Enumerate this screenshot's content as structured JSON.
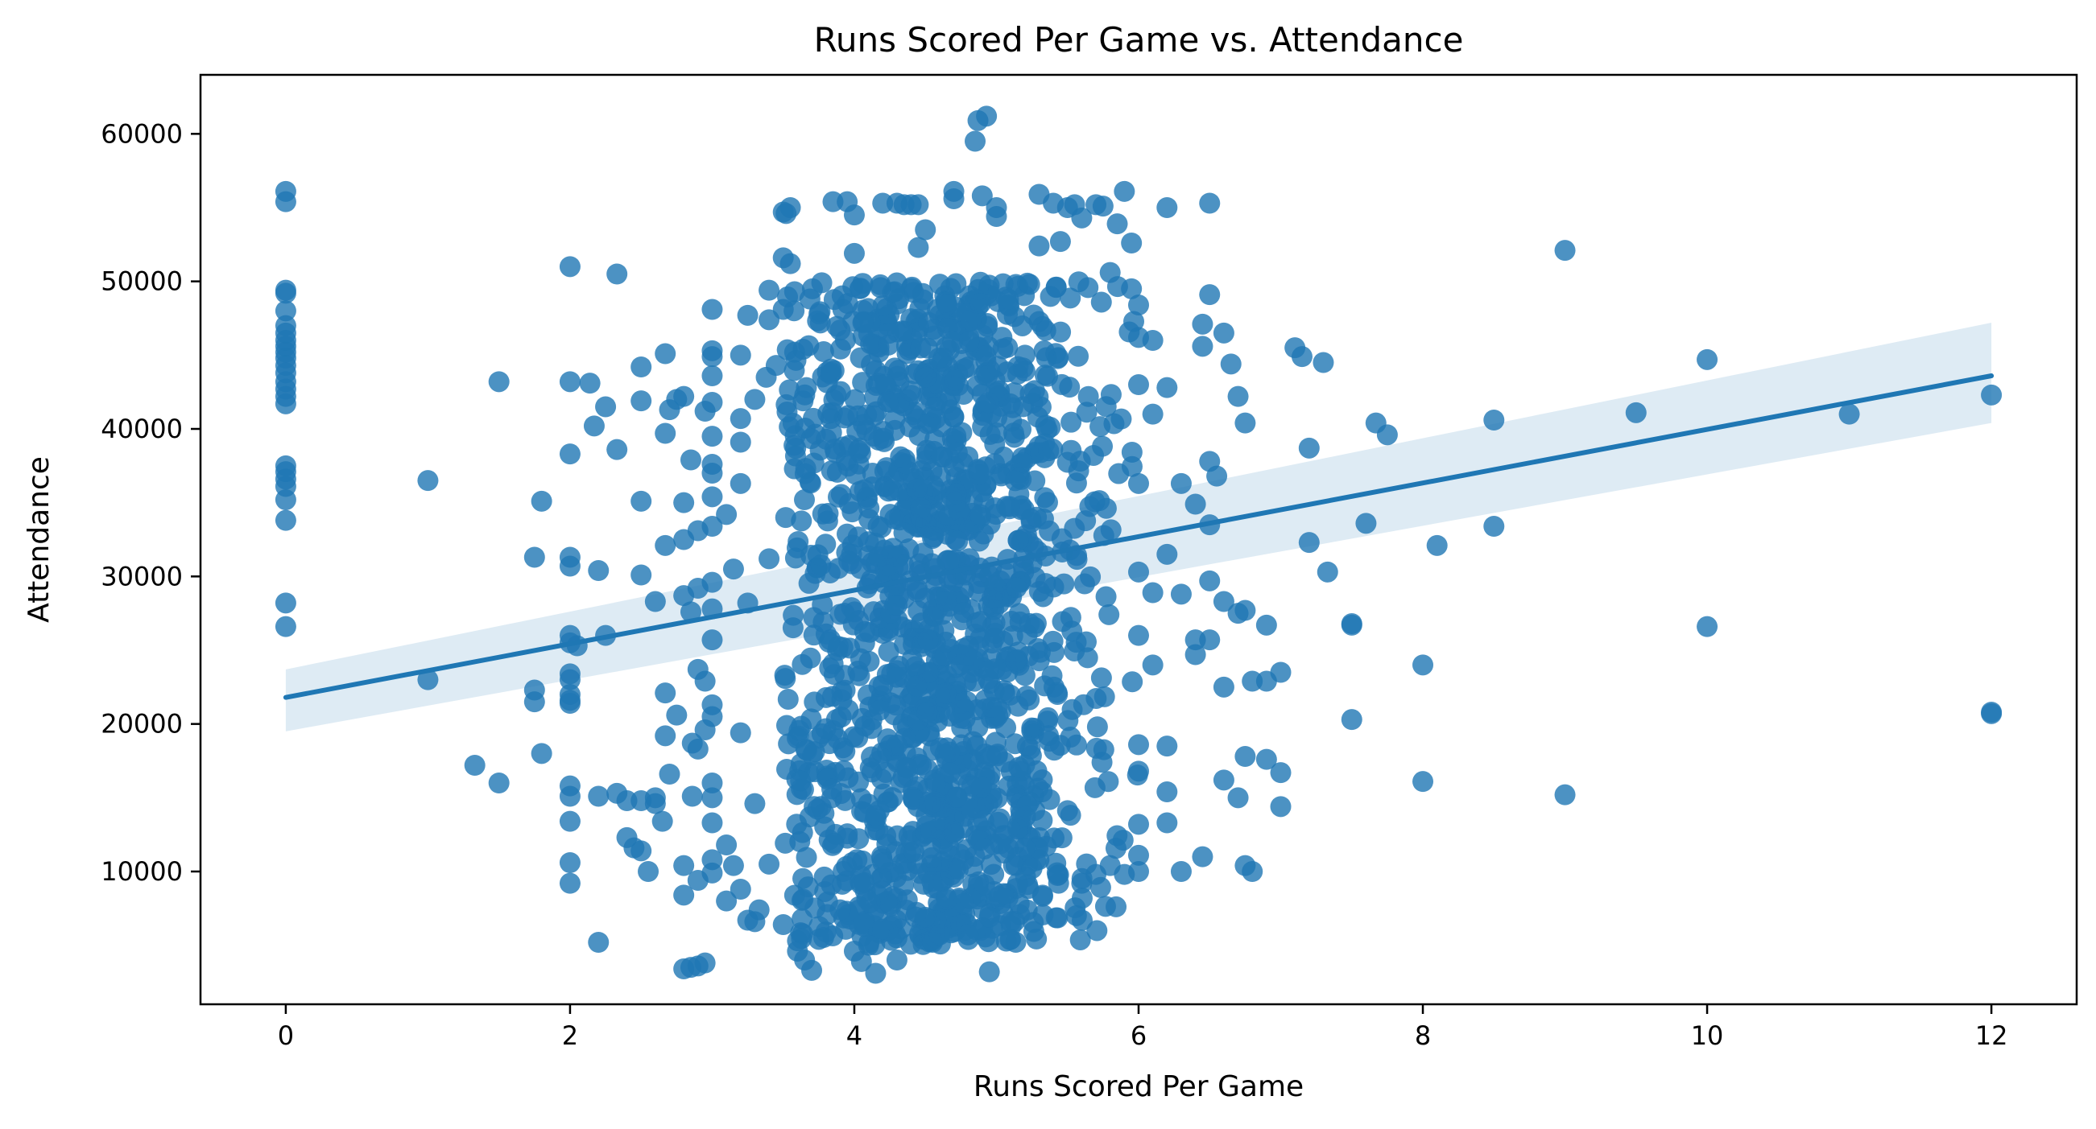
{
  "chart_data": {
    "type": "scatter",
    "title": "Runs Scored Per Game vs. Attendance",
    "xlabel": "Runs Scored Per Game",
    "ylabel": "Attendance",
    "xlim": [
      -0.6,
      12.6
    ],
    "ylim": [
      1000,
      64000
    ],
    "xticks": [
      0,
      2,
      4,
      6,
      8,
      10,
      12
    ],
    "yticks": [
      10000,
      20000,
      30000,
      40000,
      50000,
      60000
    ],
    "grid": false,
    "legend": "none",
    "point_color": "#1f77b4",
    "point_opacity": 0.8,
    "band_color": "#1f77b4",
    "band_opacity": 0.15,
    "regression": {
      "x": [
        0,
        12
      ],
      "y": [
        21800,
        43600
      ],
      "ci_lower": [
        19500,
        40400
      ],
      "ci_upper": [
        23700,
        47200
      ]
    },
    "dense_region": {
      "x_range": [
        3.5,
        6.0
      ],
      "y_range": [
        5000,
        50000
      ],
      "approx_count": 1500
    },
    "points": [
      [
        0,
        56100
      ],
      [
        0,
        55400
      ],
      [
        0,
        49400
      ],
      [
        0,
        49200
      ],
      [
        0,
        48000
      ],
      [
        0,
        47000
      ],
      [
        0,
        46500
      ],
      [
        0,
        46000
      ],
      [
        0,
        45600
      ],
      [
        0,
        45200
      ],
      [
        0,
        44800
      ],
      [
        0,
        44300
      ],
      [
        0,
        43800
      ],
      [
        0,
        43200
      ],
      [
        0,
        42700
      ],
      [
        0,
        42200
      ],
      [
        0,
        41700
      ],
      [
        0,
        37500
      ],
      [
        0,
        37100
      ],
      [
        0,
        36600
      ],
      [
        0,
        36100
      ],
      [
        0,
        35200
      ],
      [
        0,
        33800
      ],
      [
        0,
        28200
      ],
      [
        0,
        26600
      ],
      [
        1,
        36500
      ],
      [
        1,
        23000
      ],
      [
        1.33,
        17200
      ],
      [
        1.5,
        43200
      ],
      [
        1.5,
        16000
      ],
      [
        1.75,
        31300
      ],
      [
        1.75,
        22300
      ],
      [
        1.75,
        21500
      ],
      [
        1.8,
        35100
      ],
      [
        1.8,
        18000
      ],
      [
        2,
        51000
      ],
      [
        2,
        43200
      ],
      [
        2,
        38300
      ],
      [
        2,
        31300
      ],
      [
        2,
        30700
      ],
      [
        2,
        26000
      ],
      [
        2,
        25500
      ],
      [
        2,
        23400
      ],
      [
        2,
        23000
      ],
      [
        2,
        22000
      ],
      [
        2,
        21600
      ],
      [
        2,
        21400
      ],
      [
        2,
        15800
      ],
      [
        2,
        15100
      ],
      [
        2,
        13400
      ],
      [
        2,
        10600
      ],
      [
        2,
        9200
      ],
      [
        2.05,
        25300
      ],
      [
        2.14,
        43100
      ],
      [
        2.2,
        5200
      ],
      [
        2.2,
        30400
      ],
      [
        2.2,
        15100
      ],
      [
        2.25,
        41500
      ],
      [
        2.17,
        40200
      ],
      [
        2.33,
        50500
      ],
      [
        2.33,
        38600
      ],
      [
        2.25,
        26000
      ],
      [
        2.33,
        15300
      ],
      [
        2.4,
        12300
      ],
      [
        2.45,
        11600
      ],
      [
        2.4,
        14800
      ],
      [
        2.5,
        44200
      ],
      [
        2.5,
        41900
      ],
      [
        2.5,
        35100
      ],
      [
        2.5,
        30100
      ],
      [
        2.5,
        14800
      ],
      [
        2.5,
        11400
      ],
      [
        2.55,
        10000
      ],
      [
        2.6,
        28300
      ],
      [
        2.6,
        15000
      ],
      [
        2.6,
        14600
      ],
      [
        2.65,
        13400
      ],
      [
        2.67,
        45100
      ],
      [
        2.67,
        39700
      ],
      [
        2.67,
        32100
      ],
      [
        2.67,
        22100
      ],
      [
        2.67,
        19200
      ],
      [
        2.7,
        41300
      ],
      [
        2.7,
        16600
      ],
      [
        2.75,
        42000
      ],
      [
        2.75,
        20600
      ],
      [
        2.8,
        42200
      ],
      [
        2.8,
        35000
      ],
      [
        2.8,
        32500
      ],
      [
        2.8,
        28700
      ],
      [
        2.8,
        10400
      ],
      [
        2.8,
        8400
      ],
      [
        2.8,
        3400
      ],
      [
        2.85,
        3500
      ],
      [
        2.85,
        37900
      ],
      [
        2.85,
        27600
      ],
      [
        2.86,
        18700
      ],
      [
        2.86,
        15100
      ],
      [
        2.9,
        3600
      ],
      [
        2.9,
        33100
      ],
      [
        2.9,
        29200
      ],
      [
        2.9,
        23700
      ],
      [
        2.9,
        18300
      ],
      [
        2.9,
        9400
      ],
      [
        2.95,
        3800
      ],
      [
        2.95,
        41200
      ],
      [
        2.95,
        22900
      ],
      [
        2.95,
        19600
      ],
      [
        3,
        48100
      ],
      [
        3,
        45300
      ],
      [
        3,
        44900
      ],
      [
        3,
        43600
      ],
      [
        3,
        41800
      ],
      [
        3,
        39500
      ],
      [
        3,
        37600
      ],
      [
        3,
        37000
      ],
      [
        3,
        35400
      ],
      [
        3,
        33400
      ],
      [
        3,
        29600
      ],
      [
        3,
        27800
      ],
      [
        3,
        25700
      ],
      [
        3,
        21300
      ],
      [
        3,
        20500
      ],
      [
        3,
        16000
      ],
      [
        3,
        15000
      ],
      [
        3,
        13300
      ],
      [
        3,
        10800
      ],
      [
        3,
        9900
      ],
      [
        3.1,
        11800
      ],
      [
        3.1,
        8000
      ],
      [
        3.1,
        34200
      ],
      [
        3.15,
        10400
      ],
      [
        3.15,
        30500
      ],
      [
        3.2,
        45000
      ],
      [
        3.2,
        40700
      ],
      [
        3.2,
        39100
      ],
      [
        3.2,
        36300
      ],
      [
        3.2,
        19400
      ],
      [
        3.2,
        8800
      ],
      [
        3.25,
        47700
      ],
      [
        3.25,
        6700
      ],
      [
        3.25,
        28200
      ],
      [
        3.3,
        6600
      ],
      [
        3.3,
        42000
      ],
      [
        3.3,
        14600
      ],
      [
        3.33,
        7400
      ],
      [
        3.38,
        43500
      ],
      [
        3.4,
        49400
      ],
      [
        3.4,
        47400
      ],
      [
        3.4,
        31200
      ],
      [
        3.4,
        10500
      ],
      [
        3.45,
        44300
      ],
      [
        3.5,
        6400
      ],
      [
        3.5,
        51600
      ],
      [
        3.5,
        48100
      ],
      [
        3.5,
        54700
      ],
      [
        3.52,
        54600
      ],
      [
        3.55,
        51200
      ],
      [
        3.55,
        55000
      ],
      [
        3.58,
        45200
      ],
      [
        3.58,
        49300
      ],
      [
        3.6,
        5300
      ],
      [
        3.6,
        4600
      ],
      [
        3.65,
        4000
      ],
      [
        3.7,
        3300
      ],
      [
        3.75,
        5400
      ],
      [
        3.8,
        5900
      ],
      [
        3.85,
        55400
      ],
      [
        3.9,
        46700
      ],
      [
        3.9,
        7400
      ],
      [
        3.95,
        55400
      ],
      [
        4.0,
        51900
      ],
      [
        4.0,
        54500
      ],
      [
        4.0,
        4600
      ],
      [
        4.05,
        3900
      ],
      [
        4.1,
        5000
      ],
      [
        4.15,
        3100
      ],
      [
        4.2,
        55300
      ],
      [
        4.2,
        6100
      ],
      [
        4.3,
        55300
      ],
      [
        4.3,
        5500
      ],
      [
        4.3,
        4000
      ],
      [
        4.35,
        55200
      ],
      [
        4.4,
        55200
      ],
      [
        4.45,
        55200
      ],
      [
        4.45,
        52300
      ],
      [
        4.5,
        53500
      ],
      [
        4.5,
        6900
      ],
      [
        4.55,
        5200
      ],
      [
        4.6,
        5700
      ],
      [
        4.65,
        8100
      ],
      [
        4.7,
        56100
      ],
      [
        4.7,
        55600
      ],
      [
        4.75,
        6400
      ],
      [
        4.8,
        5700
      ],
      [
        4.85,
        59500
      ],
      [
        4.87,
        60900
      ],
      [
        4.93,
        61200
      ],
      [
        4.9,
        55800
      ],
      [
        4.95,
        3200
      ],
      [
        4.95,
        6900
      ],
      [
        5.0,
        55000
      ],
      [
        5.0,
        54400
      ],
      [
        5.05,
        8500
      ],
      [
        5.1,
        5400
      ],
      [
        5.1,
        6600
      ],
      [
        5.15,
        9200
      ],
      [
        5.2,
        11600
      ],
      [
        5.25,
        10200
      ],
      [
        5.3,
        55900
      ],
      [
        5.3,
        52400
      ],
      [
        5.4,
        55300
      ],
      [
        5.45,
        52700
      ],
      [
        5.5,
        55000
      ],
      [
        5.55,
        55200
      ],
      [
        5.6,
        54300
      ],
      [
        5.6,
        9200
      ],
      [
        5.7,
        55200
      ],
      [
        5.7,
        9800
      ],
      [
        5.75,
        55100
      ],
      [
        5.8,
        50600
      ],
      [
        5.8,
        10400
      ],
      [
        5.85,
        53900
      ],
      [
        5.9,
        56100
      ],
      [
        5.9,
        9800
      ],
      [
        5.95,
        52600
      ],
      [
        5.95,
        49500
      ],
      [
        6,
        48400
      ],
      [
        6,
        46200
      ],
      [
        6,
        43000
      ],
      [
        6,
        36300
      ],
      [
        6,
        30300
      ],
      [
        6,
        26000
      ],
      [
        6,
        18600
      ],
      [
        6,
        16800
      ],
      [
        6,
        13200
      ],
      [
        6,
        11100
      ],
      [
        6,
        10000
      ],
      [
        6.1,
        46000
      ],
      [
        6.1,
        41000
      ],
      [
        6.1,
        28900
      ],
      [
        6.1,
        24000
      ],
      [
        6.2,
        55000
      ],
      [
        6.2,
        42800
      ],
      [
        6.2,
        31500
      ],
      [
        6.2,
        18500
      ],
      [
        6.2,
        15400
      ],
      [
        6.2,
        13300
      ],
      [
        6.3,
        36300
      ],
      [
        6.3,
        28800
      ],
      [
        6.3,
        10000
      ],
      [
        6.4,
        34900
      ],
      [
        6.4,
        25700
      ],
      [
        6.4,
        24700
      ],
      [
        6.45,
        45600
      ],
      [
        6.45,
        47100
      ],
      [
        6.45,
        11000
      ],
      [
        6.5,
        55300
      ],
      [
        6.5,
        49100
      ],
      [
        6.5,
        37800
      ],
      [
        6.5,
        33500
      ],
      [
        6.5,
        29700
      ],
      [
        6.5,
        25700
      ],
      [
        6.55,
        36800
      ],
      [
        6.6,
        46500
      ],
      [
        6.6,
        28300
      ],
      [
        6.6,
        22500
      ],
      [
        6.6,
        16200
      ],
      [
        6.65,
        44400
      ],
      [
        6.7,
        42200
      ],
      [
        6.7,
        27500
      ],
      [
        6.7,
        15000
      ],
      [
        6.75,
        40400
      ],
      [
        6.75,
        27700
      ],
      [
        6.75,
        17800
      ],
      [
        6.75,
        10400
      ],
      [
        6.8,
        22900
      ],
      [
        6.8,
        10000
      ],
      [
        6.9,
        26700
      ],
      [
        6.9,
        22900
      ],
      [
        6.9,
        17600
      ],
      [
        7,
        23500
      ],
      [
        7,
        16700
      ],
      [
        7,
        14400
      ],
      [
        7.1,
        45500
      ],
      [
        7.15,
        44900
      ],
      [
        7.2,
        38700
      ],
      [
        7.2,
        32300
      ],
      [
        7.3,
        44500
      ],
      [
        7.33,
        30300
      ],
      [
        7.5,
        26800
      ],
      [
        7.5,
        20300
      ],
      [
        7.5,
        26700
      ],
      [
        7.6,
        33600
      ],
      [
        7.67,
        40400
      ],
      [
        7.75,
        39600
      ],
      [
        8,
        24000
      ],
      [
        8,
        16100
      ],
      [
        8.1,
        32100
      ],
      [
        8.5,
        40600
      ],
      [
        8.5,
        33400
      ],
      [
        9,
        52100
      ],
      [
        9,
        15200
      ],
      [
        9.5,
        41100
      ],
      [
        10,
        44700
      ],
      [
        10,
        26600
      ],
      [
        11,
        41000
      ],
      [
        12,
        42300
      ],
      [
        12,
        20800
      ],
      [
        12,
        20700
      ]
    ]
  }
}
